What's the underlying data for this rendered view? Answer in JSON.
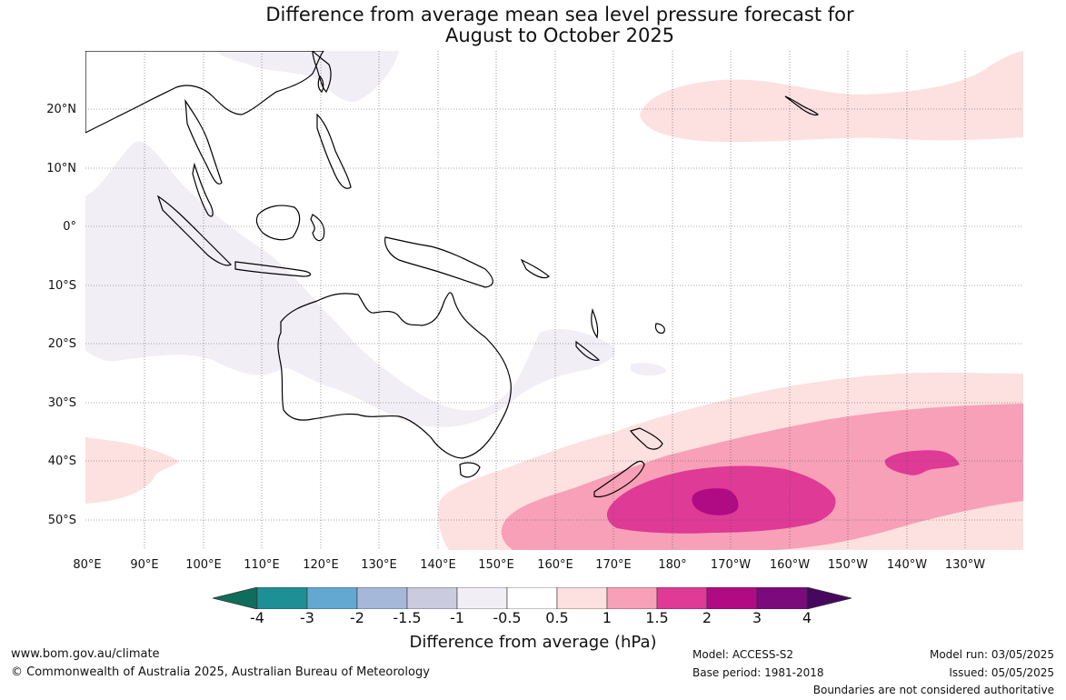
{
  "title_line1": "Difference from average mean sea level pressure forecast for",
  "title_line2": "August to October 2025",
  "lat_labels": [
    "20°N",
    "10°N",
    "0°",
    "10°S",
    "20°S",
    "30°S",
    "40°S",
    "50°S"
  ],
  "lon_labels": [
    "80°E",
    "90°E",
    "100°E",
    "110°E",
    "120°E",
    "130°E",
    "140°E",
    "150°E",
    "160°E",
    "170°E",
    "180°",
    "170°W",
    "160°W",
    "150°W",
    "140°W",
    "130°W"
  ],
  "colorbar": {
    "title": "Difference from average (hPa)",
    "ticks": [
      "-4",
      "-3",
      "-2",
      "-1.5",
      "-1",
      "-0.5",
      "0.5",
      "1",
      "1.5",
      "2",
      "3",
      "4"
    ],
    "colors": [
      "#0f6d5c",
      "#1e8f94",
      "#62a8d3",
      "#a6b8da",
      "#cbcbe0",
      "#f2eef5",
      "#ffffff",
      "#fde0e0",
      "#f7a0b8",
      "#de3a96",
      "#b00a84",
      "#7c0a7c",
      "#48075e"
    ]
  },
  "footer": {
    "url": "www.bom.gov.au/climate",
    "copyright": "© Commonwealth of Australia 2025, Australian Bureau of Meteorology",
    "model": "Model: ACCESS-S2",
    "base_period": "Base period: 1981-2018",
    "model_run": "Model run: 03/05/2025",
    "issued": "Issued: 05/05/2025",
    "disclaimer": "Boundaries are not considered authoritative"
  }
}
